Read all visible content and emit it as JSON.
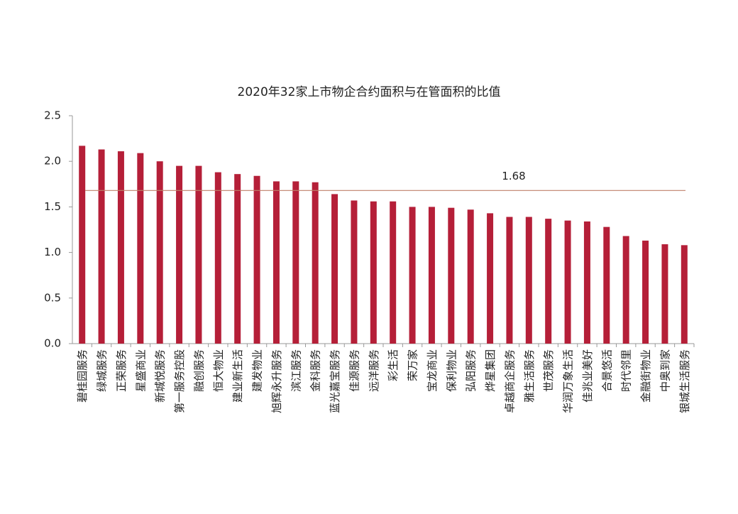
{
  "chart_data": {
    "type": "bar",
    "title": "2020年32家上市物企合约面积与在管面积的比值",
    "categories": [
      "碧桂园服务",
      "绿城服务",
      "正荣服务",
      "星盛商业",
      "新城悦服务",
      "第一服务控股",
      "融创服务",
      "恒大物业",
      "建业新生活",
      "建发物业",
      "旭辉永升服务",
      "滨江服务",
      "金科服务",
      "蓝光嘉宝服务",
      "佳源服务",
      "远洋服务",
      "彩生活",
      "荣万家",
      "宝龙商业",
      "保利物业",
      "弘阳服务",
      "烨星集团",
      "卓越商企服务",
      "雅生活服务",
      "世茂服务",
      "华润万象生活",
      "佳兆业美好",
      "合景悠活",
      "时代邻里",
      "金融街物业",
      "中奥到家",
      "银城生活服务"
    ],
    "values": [
      2.17,
      2.13,
      2.11,
      2.09,
      2.0,
      1.95,
      1.95,
      1.88,
      1.86,
      1.84,
      1.78,
      1.78,
      1.77,
      1.64,
      1.57,
      1.56,
      1.56,
      1.5,
      1.5,
      1.49,
      1.47,
      1.43,
      1.39,
      1.39,
      1.37,
      1.35,
      1.34,
      1.28,
      1.18,
      1.13,
      1.09,
      1.08
    ],
    "color": "#b51f38",
    "ylim": [
      0,
      2.5
    ],
    "yticks": [
      {
        "value": 0,
        "label": "0.0"
      },
      {
        "value": 0.5,
        "label": "0.5"
      },
      {
        "value": 1,
        "label": "1.0"
      },
      {
        "value": 1.5,
        "label": "1.5"
      },
      {
        "value": 2,
        "label": "2.0"
      },
      {
        "value": 2.5,
        "label": "2.5"
      }
    ],
    "reference_line": {
      "value": 1.68,
      "color": "#c0806a"
    }
  }
}
